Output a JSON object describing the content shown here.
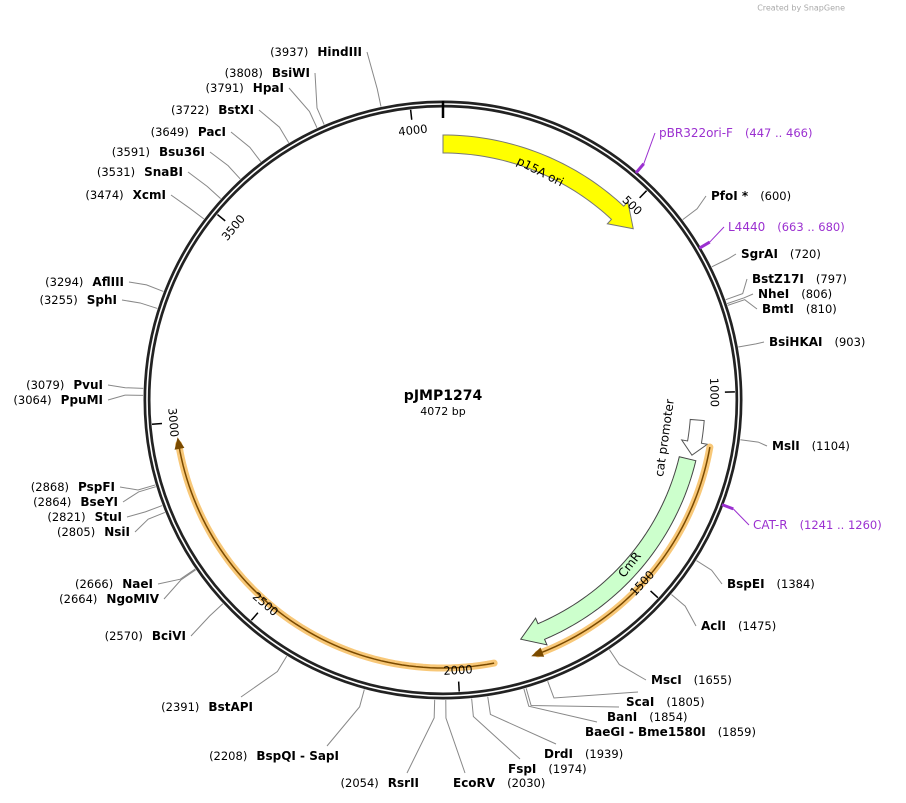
{
  "watermark": "Created by SnapGene",
  "map": {
    "name": "pJMP1274",
    "size": "4072 bp",
    "ticks": [
      500,
      1000,
      1500,
      2000,
      2500,
      3000,
      3500,
      4000
    ]
  },
  "enzymes": [
    {
      "name": "HindIII",
      "position": "(3937)"
    },
    {
      "name": "BsiWI",
      "position": "(3808)"
    },
    {
      "name": "HpaI",
      "position": "(3791)"
    },
    {
      "name": "BstXI",
      "position": "(3722)"
    },
    {
      "name": "PacI",
      "position": "(3649)"
    },
    {
      "name": "Bsu36I",
      "position": "(3591)"
    },
    {
      "name": "SnaBI",
      "position": "(3531)"
    },
    {
      "name": "XcmI",
      "position": "(3474)"
    },
    {
      "name": "AflIII",
      "position": "(3294)"
    },
    {
      "name": "SphI",
      "position": "(3255)"
    },
    {
      "name": "PvuI",
      "position": "(3079)"
    },
    {
      "name": "PpuMI",
      "position": "(3064)"
    },
    {
      "name": "PspFI",
      "position": "(2868)"
    },
    {
      "name": "BseYI",
      "position": "(2864)"
    },
    {
      "name": "StuI",
      "position": "(2821)"
    },
    {
      "name": "NsiI",
      "position": "(2805)"
    },
    {
      "name": "NaeI",
      "position": "(2666)"
    },
    {
      "name": "NgoMIV",
      "position": "(2664)"
    },
    {
      "name": "BciVI",
      "position": "(2570)"
    },
    {
      "name": "BstAPI",
      "position": "(2391)"
    },
    {
      "name": "BspQI - SapI",
      "position": "(2208)"
    },
    {
      "name": "RsrII",
      "position": "(2054)"
    },
    {
      "name": "EcoRV",
      "position": "(2030)"
    },
    {
      "name": "FspI",
      "position": "(1974)"
    },
    {
      "name": "DrdI",
      "position": "(1939)"
    },
    {
      "name": "BaeGI - Bme1580I",
      "position": "(1859)"
    },
    {
      "name": "BanI",
      "position": "(1854)"
    },
    {
      "name": "ScaI",
      "position": "(1805)"
    },
    {
      "name": "MscI",
      "position": "(1655)"
    },
    {
      "name": "AclI",
      "position": "(1475)"
    },
    {
      "name": "BspEI",
      "position": "(1384)"
    },
    {
      "name": "MslI",
      "position": "(1104)"
    },
    {
      "name": "BsiHKAI",
      "position": "(903)"
    },
    {
      "name": "BmtI",
      "position": "(810)"
    },
    {
      "name": "NheI",
      "position": "(806)"
    },
    {
      "name": "BstZ17I",
      "position": "(797)"
    },
    {
      "name": "SgrAI",
      "position": "(720)"
    },
    {
      "name": "PfoI *",
      "position": "(600)"
    }
  ],
  "primers": [
    {
      "name": "pBR322ori-F",
      "range": "(447 .. 466)"
    },
    {
      "name": "L4440",
      "range": "(663 .. 680)"
    },
    {
      "name": "CAT-R",
      "range": "(1241 .. 1260)"
    }
  ],
  "features": [
    {
      "name": "p15A ori"
    },
    {
      "name": "CmR"
    },
    {
      "name": "cat promoter"
    }
  ]
}
